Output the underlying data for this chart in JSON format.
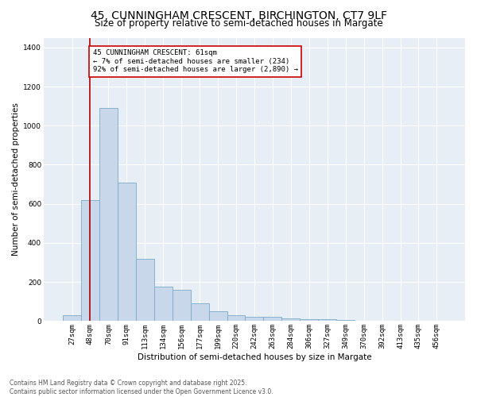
{
  "title_line1": "45, CUNNINGHAM CRESCENT, BIRCHINGTON, CT7 9LF",
  "title_line2": "Size of property relative to semi-detached houses in Margate",
  "xlabel": "Distribution of semi-detached houses by size in Margate",
  "ylabel": "Number of semi-detached properties",
  "bar_color": "#c8d8ea",
  "bar_edge_color": "#7aaac8",
  "background_color": "#e8eef5",
  "grid_color": "#ffffff",
  "categories": [
    "27sqm",
    "48sqm",
    "70sqm",
    "91sqm",
    "113sqm",
    "134sqm",
    "156sqm",
    "177sqm",
    "199sqm",
    "220sqm",
    "242sqm",
    "263sqm",
    "284sqm",
    "306sqm",
    "327sqm",
    "349sqm",
    "370sqm",
    "392sqm",
    "413sqm",
    "435sqm",
    "456sqm"
  ],
  "values": [
    30,
    620,
    1090,
    710,
    320,
    175,
    160,
    90,
    50,
    30,
    20,
    20,
    15,
    10,
    8,
    5,
    3,
    2,
    2,
    1,
    1
  ],
  "ylim": [
    0,
    1450
  ],
  "yticks": [
    0,
    200,
    400,
    600,
    800,
    1000,
    1200,
    1400
  ],
  "property_bin_index": 1,
  "annotation_text": "45 CUNNINGHAM CRESCENT: 61sqm\n← 7% of semi-detached houses are smaller (234)\n92% of semi-detached houses are larger (2,890) →",
  "vline_color": "#aa0000",
  "annotation_box_edge": "#cc0000",
  "footer_line1": "Contains HM Land Registry data © Crown copyright and database right 2025.",
  "footer_line2": "Contains public sector information licensed under the Open Government Licence v3.0.",
  "title_fontsize": 10,
  "subtitle_fontsize": 8.5,
  "tick_fontsize": 6.5,
  "ylabel_fontsize": 7.5,
  "xlabel_fontsize": 7.5,
  "annotation_fontsize": 6.5,
  "footer_fontsize": 5.5
}
